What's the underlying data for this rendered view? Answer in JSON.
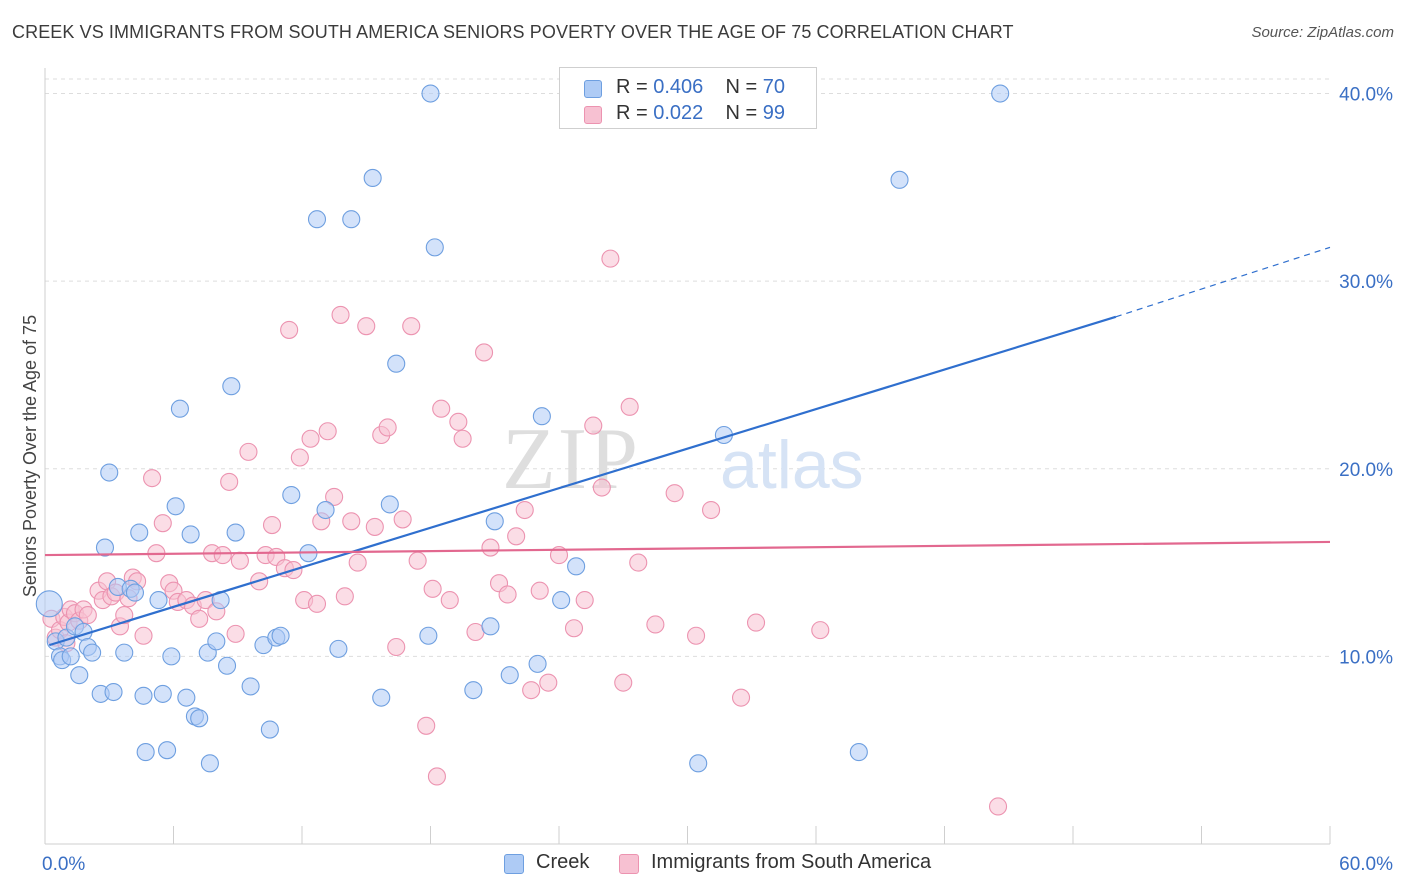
{
  "title": "CREEK VS IMMIGRANTS FROM SOUTH AMERICA SENIORS POVERTY OVER THE AGE OF 75 CORRELATION CHART",
  "source": "Source: ZipAtlas.com",
  "watermark": {
    "zip": "ZIP",
    "atlas": "atlas"
  },
  "legend": {
    "creek": {
      "r_label": "R =",
      "r_value": "0.406",
      "n_label": "N =",
      "n_value": "70"
    },
    "immigrants": {
      "r_label": "R =",
      "r_value": "0.022",
      "n_label": "N =",
      "n_value": "99"
    }
  },
  "colors": {
    "creek_fill": "#aecbf5",
    "creek_stroke": "#6e9fe0",
    "creek_line": "#2f6fce",
    "imm_fill": "#f7c1d2",
    "imm_stroke": "#ec93b0",
    "imm_line": "#e2688f",
    "tick_label": "#3a6fc4",
    "grid": "#dddddd"
  },
  "chart_data": {
    "type": "scatter",
    "title": "CREEK VS IMMIGRANTS FROM SOUTH AMERICA SENIORS POVERTY OVER THE AGE OF 75 CORRELATION CHART",
    "xlabel": "",
    "ylabel": "Seniors Poverty Over the Age of 75",
    "xlim": [
      0,
      60
    ],
    "ylim": [
      0,
      42
    ],
    "x_tick_labels": {
      "min": "0.0%",
      "max": "60.0%"
    },
    "y_ticks": [
      10,
      20,
      30,
      40
    ],
    "y_tick_labels": [
      "10.0%",
      "20.0%",
      "30.0%",
      "40.0%"
    ],
    "series": [
      {
        "name": "Creek",
        "r": 0.406,
        "n": 70,
        "trend": {
          "x0": 0.2,
          "y0": 10.6,
          "x1": 50,
          "y1": 28.1,
          "dash_to_x": 60,
          "dash_to_y": 31.8
        },
        "points": [
          [
            0.2,
            12.8
          ],
          [
            0.5,
            10.8
          ],
          [
            0.7,
            10.0
          ],
          [
            0.8,
            9.8
          ],
          [
            1.0,
            11.0
          ],
          [
            1.2,
            10.0
          ],
          [
            1.4,
            11.6
          ],
          [
            1.6,
            9.0
          ],
          [
            1.8,
            11.3
          ],
          [
            2.0,
            10.5
          ],
          [
            2.2,
            10.2
          ],
          [
            2.6,
            8.0
          ],
          [
            2.8,
            15.8
          ],
          [
            3.0,
            19.8
          ],
          [
            3.2,
            8.1
          ],
          [
            3.4,
            13.7
          ],
          [
            3.7,
            10.2
          ],
          [
            4.0,
            13.6
          ],
          [
            4.2,
            13.4
          ],
          [
            4.4,
            16.6
          ],
          [
            4.6,
            7.9
          ],
          [
            4.7,
            4.9
          ],
          [
            5.3,
            13.0
          ],
          [
            5.5,
            8.0
          ],
          [
            5.7,
            5.0
          ],
          [
            5.9,
            10.0
          ],
          [
            6.1,
            18.0
          ],
          [
            6.3,
            23.2
          ],
          [
            6.6,
            7.8
          ],
          [
            6.8,
            16.5
          ],
          [
            7.0,
            6.8
          ],
          [
            7.2,
            6.7
          ],
          [
            7.6,
            10.2
          ],
          [
            7.7,
            4.3
          ],
          [
            8.0,
            10.8
          ],
          [
            8.2,
            13.0
          ],
          [
            8.5,
            9.5
          ],
          [
            8.7,
            24.4
          ],
          [
            8.9,
            16.6
          ],
          [
            9.6,
            8.4
          ],
          [
            10.2,
            10.6
          ],
          [
            10.5,
            6.1
          ],
          [
            10.8,
            11.0
          ],
          [
            11.0,
            11.1
          ],
          [
            11.5,
            18.6
          ],
          [
            12.3,
            15.5
          ],
          [
            12.7,
            33.3
          ],
          [
            13.1,
            17.8
          ],
          [
            13.7,
            10.4
          ],
          [
            14.3,
            33.3
          ],
          [
            15.3,
            35.5
          ],
          [
            15.7,
            7.8
          ],
          [
            16.1,
            18.1
          ],
          [
            16.4,
            25.6
          ],
          [
            17.9,
            11.1
          ],
          [
            18.0,
            40.0
          ],
          [
            18.2,
            31.8
          ],
          [
            20.0,
            8.2
          ],
          [
            20.8,
            11.6
          ],
          [
            21.0,
            17.2
          ],
          [
            21.7,
            9.0
          ],
          [
            23.0,
            9.6
          ],
          [
            23.2,
            22.8
          ],
          [
            24.1,
            13.0
          ],
          [
            24.8,
            14.8
          ],
          [
            30.5,
            4.3
          ],
          [
            31.7,
            21.8
          ],
          [
            38.0,
            4.9
          ],
          [
            39.9,
            35.4
          ],
          [
            44.6,
            40.0
          ]
        ]
      },
      {
        "name": "Immigrants from South America",
        "r": 0.022,
        "n": 99,
        "trend": {
          "x0": 0,
          "y0": 15.4,
          "x1": 60,
          "y1": 16.1
        },
        "points": [
          [
            0.3,
            12.0
          ],
          [
            0.5,
            11.0
          ],
          [
            0.7,
            11.4
          ],
          [
            0.9,
            12.1
          ],
          [
            1.0,
            10.7
          ],
          [
            1.1,
            11.8
          ],
          [
            1.2,
            12.5
          ],
          [
            1.4,
            12.3
          ],
          [
            1.6,
            11.9
          ],
          [
            1.8,
            12.5
          ],
          [
            2.0,
            12.2
          ],
          [
            2.5,
            13.5
          ],
          [
            2.7,
            13.0
          ],
          [
            2.9,
            14.0
          ],
          [
            3.1,
            13.2
          ],
          [
            3.3,
            13.4
          ],
          [
            3.5,
            11.6
          ],
          [
            3.7,
            12.2
          ],
          [
            3.9,
            13.1
          ],
          [
            4.1,
            14.2
          ],
          [
            4.3,
            14.0
          ],
          [
            4.6,
            11.1
          ],
          [
            5.0,
            19.5
          ],
          [
            5.2,
            15.5
          ],
          [
            5.5,
            17.1
          ],
          [
            5.8,
            13.9
          ],
          [
            6.0,
            13.5
          ],
          [
            6.2,
            12.9
          ],
          [
            6.6,
            13.0
          ],
          [
            6.9,
            12.7
          ],
          [
            7.2,
            12.0
          ],
          [
            7.5,
            13.0
          ],
          [
            7.8,
            15.5
          ],
          [
            8.0,
            12.4
          ],
          [
            8.3,
            15.4
          ],
          [
            8.6,
            19.3
          ],
          [
            8.9,
            11.2
          ],
          [
            9.1,
            15.1
          ],
          [
            9.5,
            20.9
          ],
          [
            10.0,
            14.0
          ],
          [
            10.3,
            15.4
          ],
          [
            10.6,
            17.0
          ],
          [
            10.8,
            15.3
          ],
          [
            11.2,
            14.7
          ],
          [
            11.4,
            27.4
          ],
          [
            11.6,
            14.6
          ],
          [
            11.9,
            20.6
          ],
          [
            12.1,
            13.0
          ],
          [
            12.4,
            21.6
          ],
          [
            12.7,
            12.8
          ],
          [
            12.9,
            17.2
          ],
          [
            13.2,
            22.0
          ],
          [
            13.5,
            18.5
          ],
          [
            13.8,
            28.2
          ],
          [
            14.0,
            13.2
          ],
          [
            14.3,
            17.2
          ],
          [
            14.6,
            15.0
          ],
          [
            15.0,
            27.6
          ],
          [
            15.4,
            16.9
          ],
          [
            15.7,
            21.8
          ],
          [
            16.0,
            22.2
          ],
          [
            16.4,
            10.5
          ],
          [
            16.7,
            17.3
          ],
          [
            17.1,
            27.6
          ],
          [
            17.4,
            15.1
          ],
          [
            17.8,
            6.3
          ],
          [
            18.1,
            13.6
          ],
          [
            18.3,
            3.6
          ],
          [
            18.5,
            23.2
          ],
          [
            18.9,
            13.0
          ],
          [
            19.3,
            22.5
          ],
          [
            19.5,
            21.6
          ],
          [
            20.1,
            11.3
          ],
          [
            20.5,
            26.2
          ],
          [
            20.8,
            15.8
          ],
          [
            21.2,
            13.9
          ],
          [
            21.6,
            13.3
          ],
          [
            22.0,
            16.4
          ],
          [
            22.4,
            17.8
          ],
          [
            22.7,
            8.2
          ],
          [
            23.1,
            13.5
          ],
          [
            23.5,
            8.6
          ],
          [
            24.0,
            15.4
          ],
          [
            24.7,
            11.5
          ],
          [
            25.2,
            13.0
          ],
          [
            25.6,
            22.3
          ],
          [
            26.0,
            19.0
          ],
          [
            26.4,
            31.2
          ],
          [
            27.0,
            8.6
          ],
          [
            27.3,
            23.3
          ],
          [
            27.7,
            15.0
          ],
          [
            28.5,
            11.7
          ],
          [
            29.4,
            18.7
          ],
          [
            30.4,
            11.1
          ],
          [
            31.1,
            17.8
          ],
          [
            32.5,
            7.8
          ],
          [
            33.2,
            11.8
          ],
          [
            36.2,
            11.4
          ],
          [
            44.5,
            2.0
          ]
        ]
      }
    ]
  }
}
